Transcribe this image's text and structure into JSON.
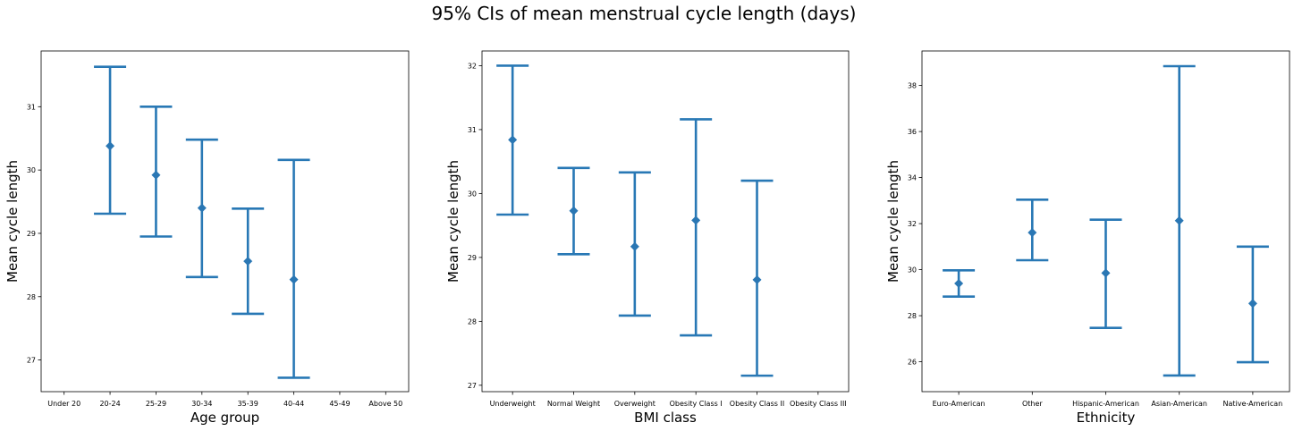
{
  "suptitle": "95% CIs of mean menstrual cycle length (days)",
  "colors": {
    "series": "#1f77b4",
    "axis": "#000000",
    "background": "#ffffff"
  },
  "chart_data": [
    {
      "type": "errorbar",
      "title": "",
      "xlabel": "Age group",
      "ylabel": "Mean cycle length",
      "categories": [
        "Under 20",
        "20-24",
        "25-29",
        "30-34",
        "35-39",
        "40-44",
        "45-49",
        "Above 50"
      ],
      "ylim": [
        26.5,
        31.88
      ],
      "yticks": [
        27,
        28,
        29,
        30,
        31
      ],
      "grid": false,
      "marker": "diamond",
      "series": [
        {
          "mean": [
            null,
            30.38,
            29.92,
            29.4,
            28.56,
            28.27,
            null,
            null
          ],
          "lower": [
            null,
            29.31,
            28.95,
            28.31,
            27.73,
            26.72,
            null,
            null
          ],
          "upper": [
            null,
            31.63,
            31.0,
            30.48,
            29.39,
            30.16,
            null,
            null
          ]
        }
      ]
    },
    {
      "type": "errorbar",
      "title": "",
      "xlabel": "BMI class",
      "ylabel": "Mean cycle length",
      "categories": [
        "Underweight",
        "Normal Weight",
        "Overweight",
        "Obesity Class I",
        "Obesity Class II",
        "Obesity Class III"
      ],
      "ylim": [
        26.9,
        32.23
      ],
      "yticks": [
        27,
        28,
        29,
        30,
        31,
        32
      ],
      "grid": false,
      "marker": "diamond",
      "series": [
        {
          "mean": [
            30.84,
            29.73,
            29.17,
            29.58,
            28.65,
            null
          ],
          "lower": [
            29.67,
            29.05,
            28.09,
            27.78,
            27.15,
            null
          ],
          "upper": [
            32.0,
            30.4,
            30.33,
            31.16,
            30.2,
            null
          ]
        }
      ]
    },
    {
      "type": "errorbar",
      "title": "",
      "xlabel": "Ethnicity",
      "ylabel": "Mean cycle length",
      "categories": [
        "Euro-American",
        "Other",
        "Hispanic-American",
        "Asian-American",
        "Native-American"
      ],
      "ylim": [
        24.7,
        39.5
      ],
      "yticks": [
        26,
        28,
        30,
        32,
        34,
        36,
        38
      ],
      "grid": false,
      "marker": "diamond",
      "series": [
        {
          "mean": [
            29.4,
            31.61,
            29.85,
            32.13,
            28.53
          ],
          "lower": [
            28.83,
            30.41,
            27.47,
            25.4,
            25.98
          ],
          "upper": [
            29.97,
            33.04,
            32.17,
            38.84,
            31.0
          ]
        }
      ]
    }
  ]
}
